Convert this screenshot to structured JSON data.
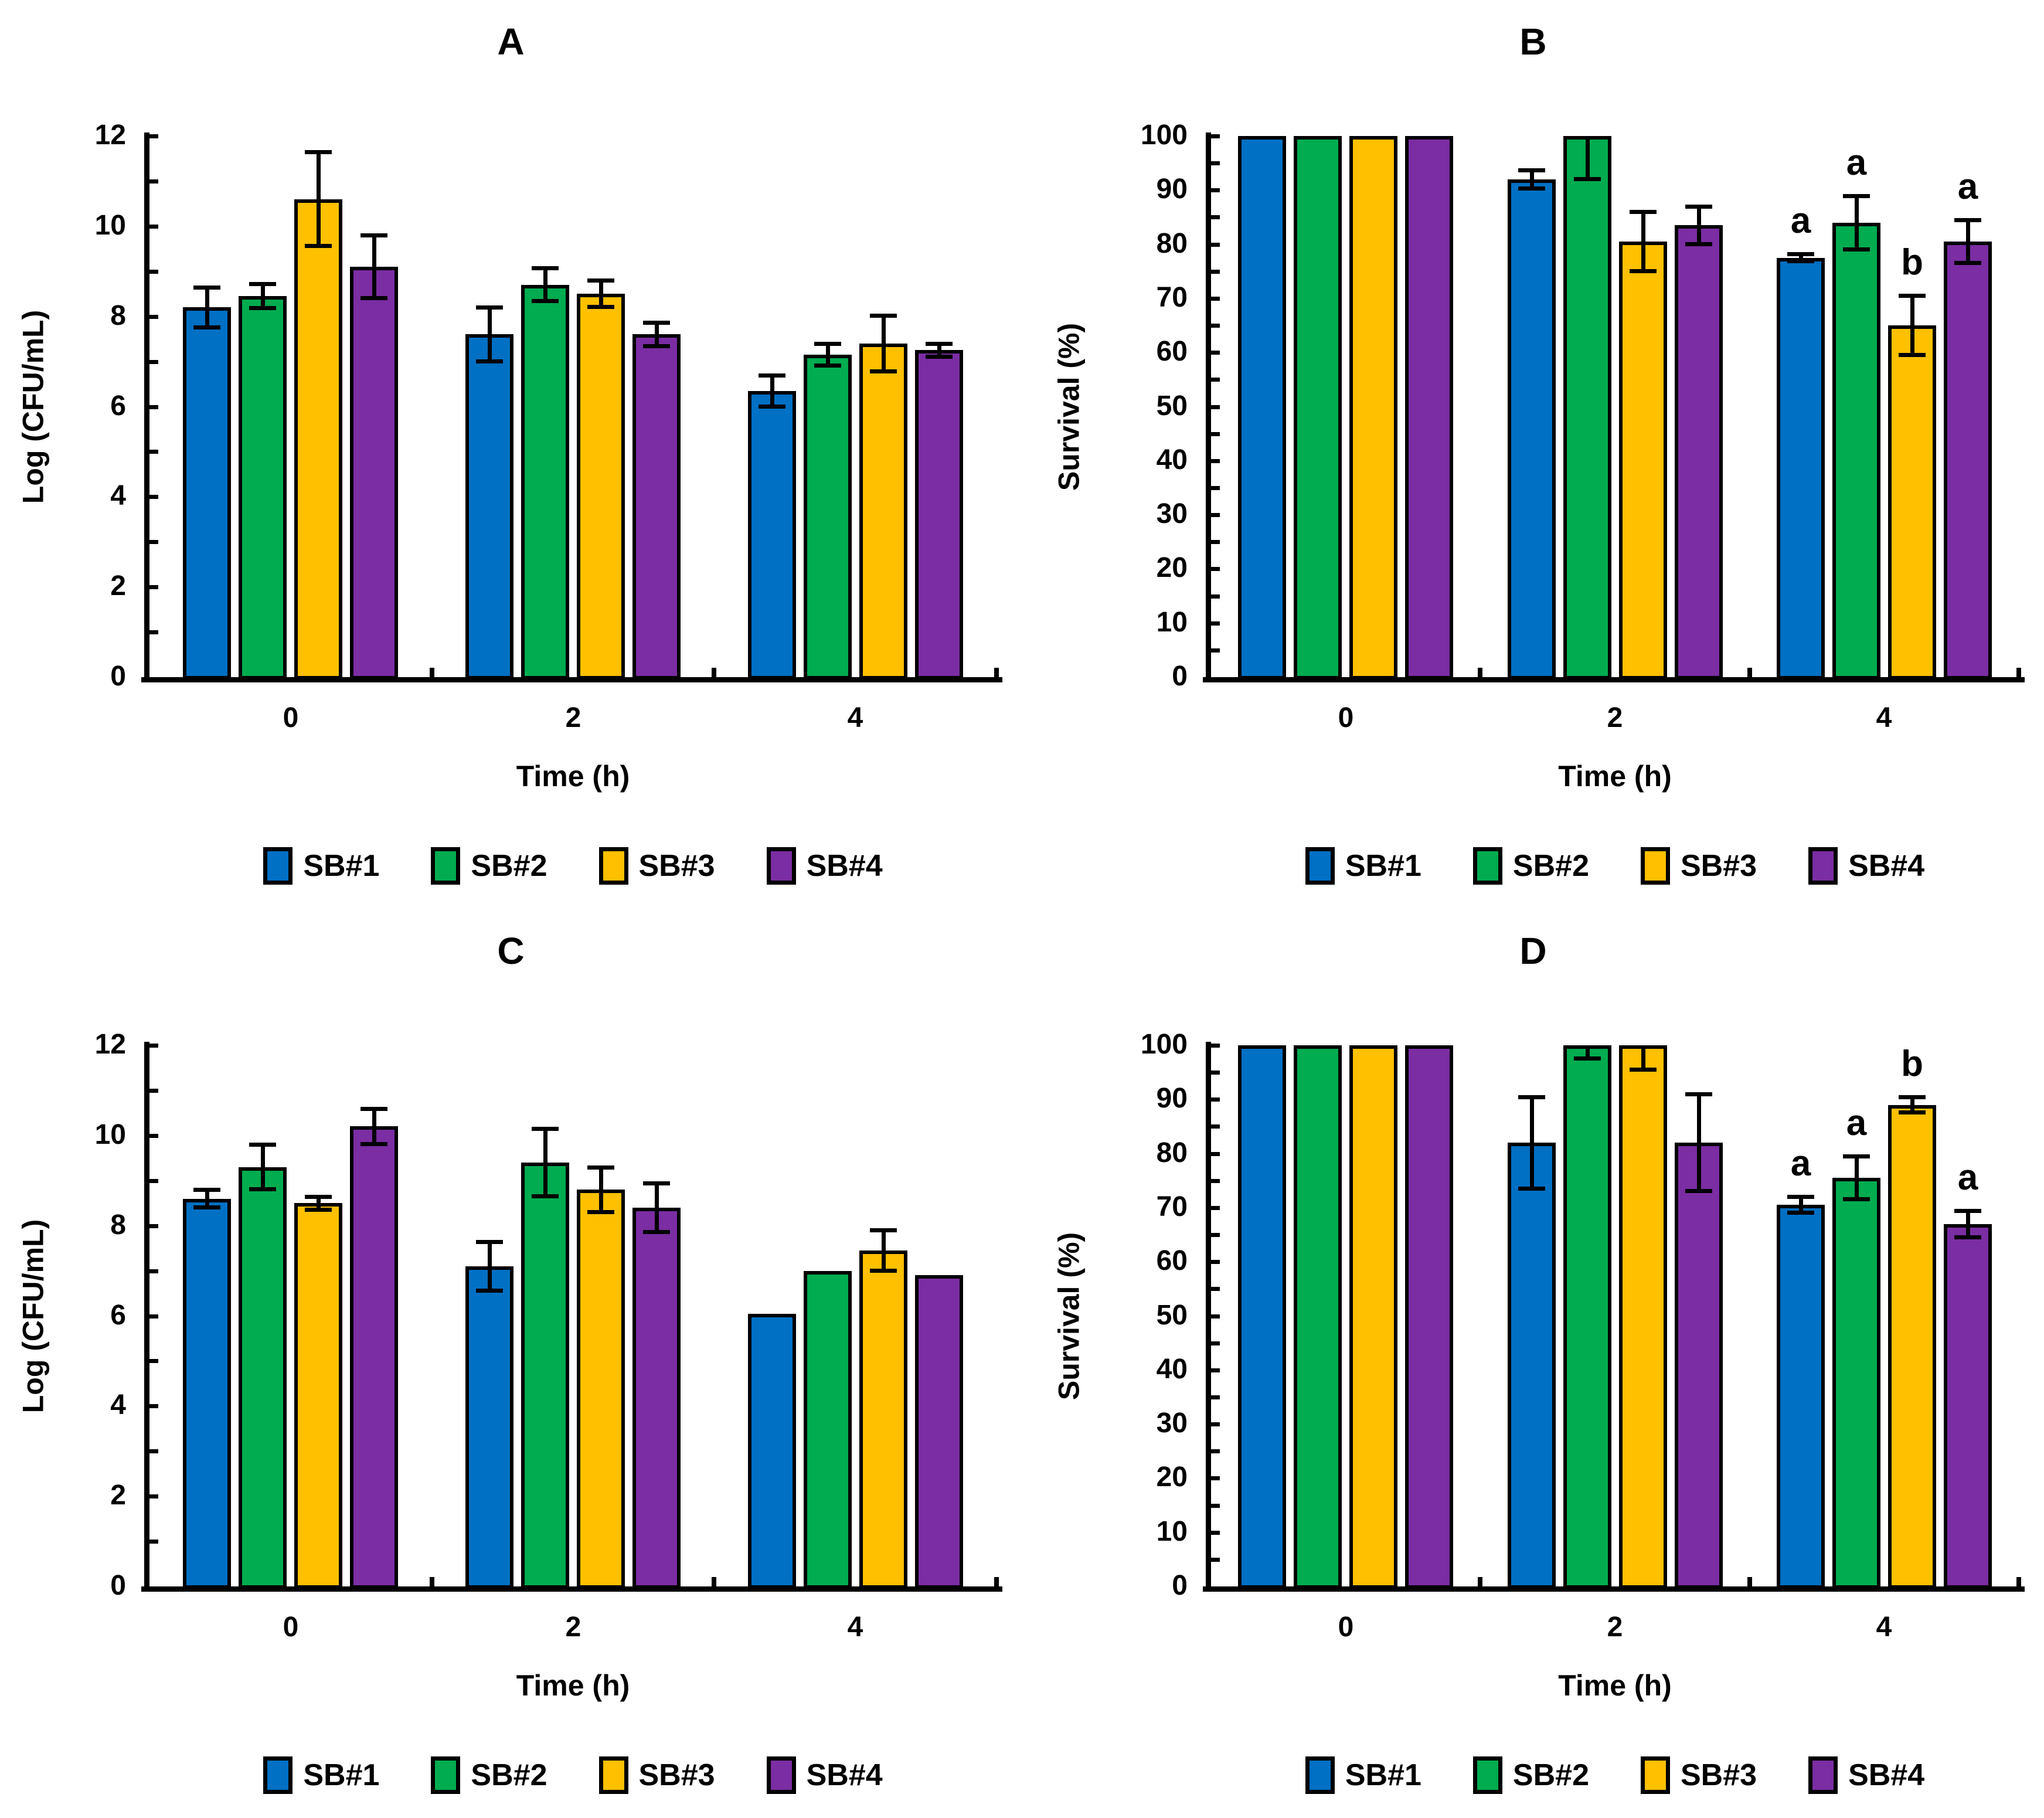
{
  "colors": {
    "sb1": "#0070C4",
    "sb2": "#00AC4F",
    "sb3": "#FFC000",
    "sb4": "#7B2DA3",
    "axis": "#000000",
    "text": "#000000"
  },
  "legend": {
    "items": [
      {
        "label": "SB#1",
        "color": "sb1"
      },
      {
        "label": "SB#2",
        "color": "sb2"
      },
      {
        "label": "SB#3",
        "color": "sb3"
      },
      {
        "label": "SB#4",
        "color": "sb4"
      }
    ]
  },
  "chart_data": [
    {
      "type": "bar",
      "panel": "A",
      "title": "A",
      "xlabel": "Time (h)",
      "ylabel": "Log (CFU/mL)",
      "ylim": [
        0,
        12
      ],
      "ytick_labels": [
        "0",
        "2",
        "4",
        "6",
        "8",
        "10",
        "12"
      ],
      "yminor_step": 1,
      "categories": [
        "0",
        "2",
        "4"
      ],
      "grid": false,
      "legend_position": "bottom",
      "series": [
        {
          "name": "SB#1",
          "color": "sb1",
          "values": [
            8.2,
            7.6,
            6.35
          ],
          "err_down": [
            0.45,
            0.6,
            0.35
          ],
          "err_up": [
            0.45,
            0.6,
            0.35
          ],
          "sig_labels": [
            "",
            "",
            ""
          ]
        },
        {
          "name": "SB#2",
          "color": "sb2",
          "values": [
            8.45,
            8.7,
            7.15
          ],
          "err_down": [
            0.27,
            0.37,
            0.25
          ],
          "err_up": [
            0.27,
            0.37,
            0.25
          ],
          "sig_labels": [
            "",
            "",
            ""
          ]
        },
        {
          "name": "SB#3",
          "color": "sb3",
          "values": [
            10.6,
            8.5,
            7.4
          ],
          "err_down": [
            1.05,
            0.3,
            0.62
          ],
          "err_up": [
            1.05,
            0.3,
            0.62
          ],
          "sig_labels": [
            "",
            "",
            ""
          ]
        },
        {
          "name": "SB#4",
          "color": "sb4",
          "values": [
            9.1,
            7.6,
            7.25
          ],
          "err_down": [
            0.7,
            0.27,
            0.15
          ],
          "err_up": [
            0.7,
            0.27,
            0.15
          ],
          "sig_labels": [
            "",
            "",
            ""
          ]
        }
      ]
    },
    {
      "type": "bar",
      "panel": "B",
      "title": "B",
      "xlabel": "Time (h)",
      "ylabel": "Survival (%)",
      "ylim": [
        0,
        100
      ],
      "ytick_labels": [
        "0",
        "10",
        "20",
        "30",
        "40",
        "50",
        "60",
        "70",
        "80",
        "90",
        "100"
      ],
      "yminor_step": 5,
      "categories": [
        "0",
        "2",
        "4"
      ],
      "grid": false,
      "legend_position": "bottom",
      "series": [
        {
          "name": "SB#1",
          "color": "sb1",
          "values": [
            100,
            92,
            77.5
          ],
          "err_down": [
            0,
            1.7,
            0.7
          ],
          "err_up": [
            0,
            1.7,
            0.7
          ],
          "sig_labels": [
            "",
            "",
            "a"
          ]
        },
        {
          "name": "SB#2",
          "color": "sb2",
          "values": [
            100,
            100,
            84
          ],
          "err_down": [
            0,
            8,
            5
          ],
          "err_up": [
            0,
            0,
            5
          ],
          "sig_labels": [
            "",
            "",
            "a"
          ]
        },
        {
          "name": "SB#3",
          "color": "sb3",
          "values": [
            100,
            80.5,
            65
          ],
          "err_down": [
            0,
            5.5,
            5.5
          ],
          "err_up": [
            0,
            5.5,
            5.5
          ],
          "sig_labels": [
            "",
            "",
            "b"
          ]
        },
        {
          "name": "SB#4",
          "color": "sb4",
          "values": [
            100,
            83.5,
            80.5
          ],
          "err_down": [
            0,
            3.5,
            4
          ],
          "err_up": [
            0,
            3.5,
            4
          ],
          "sig_labels": [
            "",
            "",
            "a"
          ]
        }
      ]
    },
    {
      "type": "bar",
      "panel": "C",
      "title": "C",
      "xlabel": "Time (h)",
      "ylabel": "Log (CFU/mL)",
      "ylim": [
        0,
        12
      ],
      "ytick_labels": [
        "0",
        "2",
        "4",
        "6",
        "8",
        "10",
        "12"
      ],
      "yminor_step": 1,
      "categories": [
        "0",
        "2",
        "4"
      ],
      "grid": false,
      "legend_position": "bottom",
      "series": [
        {
          "name": "SB#1",
          "color": "sb1",
          "values": [
            8.6,
            7.1,
            6.05
          ],
          "err_down": [
            0.2,
            0.55,
            0
          ],
          "err_up": [
            0.2,
            0.55,
            0
          ],
          "sig_labels": [
            "",
            "",
            ""
          ]
        },
        {
          "name": "SB#2",
          "color": "sb2",
          "values": [
            9.3,
            9.4,
            7.0
          ],
          "err_down": [
            0.5,
            0.75,
            0
          ],
          "err_up": [
            0.5,
            0.75,
            0
          ],
          "sig_labels": [
            "",
            "",
            ""
          ]
        },
        {
          "name": "SB#3",
          "color": "sb3",
          "values": [
            8.5,
            8.8,
            7.45
          ],
          "err_down": [
            0.15,
            0.5,
            0.45
          ],
          "err_up": [
            0.15,
            0.5,
            0.45
          ],
          "sig_labels": [
            "",
            "",
            ""
          ]
        },
        {
          "name": "SB#4",
          "color": "sb4",
          "values": [
            10.2,
            8.4,
            6.9
          ],
          "err_down": [
            0.4,
            0.55,
            0
          ],
          "err_up": [
            0.4,
            0.55,
            0
          ],
          "sig_labels": [
            "",
            "",
            ""
          ]
        }
      ]
    },
    {
      "type": "bar",
      "panel": "D",
      "title": "D",
      "xlabel": "Time (h)",
      "ylabel": "Survival (%)",
      "ylim": [
        0,
        100
      ],
      "ytick_labels": [
        "0",
        "10",
        "20",
        "30",
        "40",
        "50",
        "60",
        "70",
        "80",
        "90",
        "100"
      ],
      "yminor_step": 5,
      "categories": [
        "0",
        "2",
        "4"
      ],
      "grid": false,
      "legend_position": "bottom",
      "series": [
        {
          "name": "SB#1",
          "color": "sb1",
          "values": [
            100,
            82,
            70.5
          ],
          "err_down": [
            0,
            8.5,
            1.5
          ],
          "err_up": [
            0,
            8.5,
            1.5
          ],
          "sig_labels": [
            "",
            "",
            "a"
          ]
        },
        {
          "name": "SB#2",
          "color": "sb2",
          "values": [
            100,
            100,
            75.5
          ],
          "err_down": [
            0,
            2.5,
            4
          ],
          "err_up": [
            0,
            0,
            4
          ],
          "sig_labels": [
            "",
            "",
            "a"
          ]
        },
        {
          "name": "SB#3",
          "color": "sb3",
          "values": [
            100,
            100,
            89
          ],
          "err_down": [
            0,
            4.5,
            1.5
          ],
          "err_up": [
            0,
            0,
            1.5
          ],
          "sig_labels": [
            "",
            "",
            "b"
          ]
        },
        {
          "name": "SB#4",
          "color": "sb4",
          "values": [
            100,
            82,
            67
          ],
          "err_down": [
            0,
            9,
            2.5
          ],
          "err_up": [
            0,
            9,
            2.5
          ],
          "sig_labels": [
            "",
            "",
            "a"
          ]
        }
      ]
    }
  ]
}
